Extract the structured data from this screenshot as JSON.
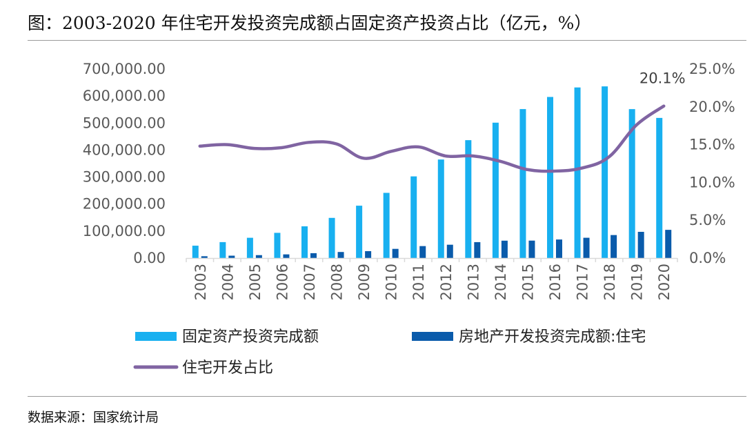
{
  "title": "图：2003-2020 年住宅开发投资完成额占固定资产投资占比（亿元，%）",
  "source": "数据来源：国家统计局",
  "colors": {
    "fixed_investment": "#18b0f0",
    "residential_investment": "#0a5bab",
    "ratio_line": "#8064a2",
    "axis_text": "#595959"
  },
  "chart_data": {
    "type": "bar",
    "categories": [
      "2003",
      "2004",
      "2005",
      "2006",
      "2007",
      "2008",
      "2009",
      "2010",
      "2011",
      "2012",
      "2013",
      "2014",
      "2015",
      "2016",
      "2017",
      "2018",
      "2019",
      "2020"
    ],
    "series": [
      {
        "name": "固定资产投资完成额",
        "type": "bar",
        "axis": "left",
        "values": [
          45812,
          59028,
          75095,
          93369,
          117464,
          148738,
          193920,
          241431,
          302396,
          364854,
          436528,
          501265,
          551590,
          596501,
          631684,
          635636,
          551478,
          518907
        ]
      },
      {
        "name": "房地产开发投资完成额:住宅",
        "type": "bar",
        "axis": "left",
        "values": [
          6777,
          8837,
          10861,
          13638,
          18005,
          22441,
          25614,
          34026,
          44320,
          49374,
          58951,
          64352,
          64595,
          68704,
          75148,
          85192,
          97071,
          104446
        ]
      },
      {
        "name": "住宅开发占比",
        "type": "line",
        "axis": "right",
        "values": [
          14.8,
          15.0,
          14.5,
          14.6,
          15.3,
          15.1,
          13.2,
          14.1,
          14.7,
          13.5,
          13.5,
          12.8,
          11.7,
          11.5,
          11.9,
          13.4,
          17.6,
          20.1
        ]
      }
    ],
    "ylim_left": [
      0,
      700000
    ],
    "yticks_left": [
      "0.00",
      "100,000.00",
      "200,000.00",
      "300,000.00",
      "400,000.00",
      "500,000.00",
      "600,000.00",
      "700,000.00"
    ],
    "ylim_right": [
      0,
      25
    ],
    "yticks_right": [
      "0.0%",
      "5.0%",
      "10.0%",
      "15.0%",
      "20.0%",
      "25.0%"
    ],
    "annotation": "20.1%",
    "legend": [
      "固定资产投资完成额",
      "房地产开发投资完成额:住宅",
      "住宅开发占比"
    ],
    "legend_position": "bottom",
    "grid": false
  }
}
